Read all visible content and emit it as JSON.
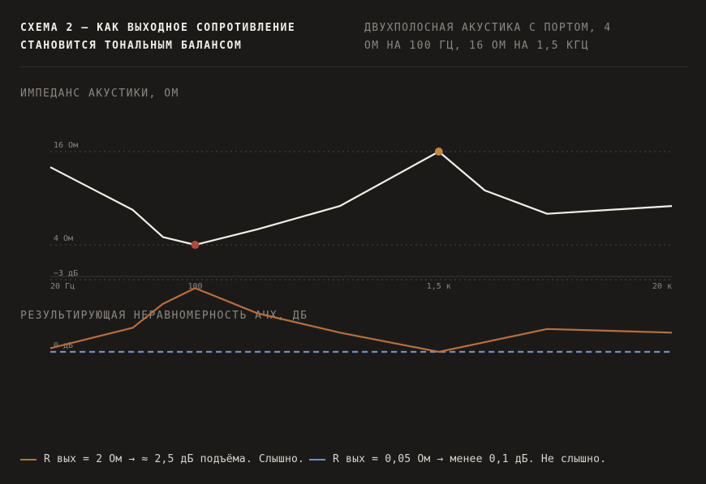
{
  "header": {
    "title_line1": "СХЕМА 2 — КАК ВЫХОДНОЕ СОПРОТИВЛЕНИЕ",
    "title_line2": "СТАНОВИТСЯ ТОНАЛЬНЫМ БАЛАНСОМ",
    "subtitle_line1": "ДВУХПОЛОСНАЯ АКУСТИКА С ПОРТОМ, 4",
    "subtitle_line2": "ОМ НА 100 ГЦ, 16 ОМ НА 1,5 КГЦ"
  },
  "colors": {
    "background": "#1c1a19",
    "impedance_line": "#f3efe8",
    "orange": "#b86e3f",
    "blue": "#6f8fbf",
    "min_marker": "#b04a3c",
    "max_marker": "#c0874a"
  },
  "chart_data": [
    {
      "type": "line",
      "title": "ИМПЕДАНС АКУСТИКИ, ОМ",
      "xscale": "log",
      "x_ticks": [
        {
          "value": 20,
          "label": "20 Гц"
        },
        {
          "value": 100,
          "label": "100"
        },
        {
          "value": 1500,
          "label": "1,5 к"
        },
        {
          "value": 20000,
          "label": "20 к"
        }
      ],
      "y_ticks": [
        {
          "value": 16,
          "label": "16 Ом"
        },
        {
          "value": 4,
          "label": "4 Ом"
        }
      ],
      "grid": "dashed at y ticks",
      "series": [
        {
          "x": [
            20,
            50,
            70,
            100,
            200,
            500,
            1500,
            2500,
            5000,
            20000
          ],
          "y": [
            14,
            8.5,
            5,
            4,
            6,
            9,
            16,
            11,
            8,
            9
          ]
        }
      ],
      "markers": [
        {
          "x": 100,
          "y": 4,
          "color": "#b04a3c"
        },
        {
          "x": 1500,
          "y": 16,
          "color": "#c0874a"
        }
      ]
    },
    {
      "type": "line",
      "title": "РЕЗУЛЬТИРУЮЩАЯ НЕРАВНОМЕРНОСТЬ АЧХ, ДБ",
      "xscale": "log",
      "y_ticks": [
        {
          "value": 0,
          "label": "0 дБ"
        },
        {
          "value": -3,
          "label": "−3 дБ"
        }
      ],
      "grid": "dashed at y ticks",
      "series": [
        {
          "name": "R вых = 2 Ом → ≈ 2,5 дБ подъёма. Слышно.",
          "color": "#b86e3f",
          "x": [
            20,
            50,
            70,
            100,
            200,
            500,
            1500,
            2500,
            5000,
            20000
          ],
          "y": [
            -0.15,
            -1.0,
            -2.0,
            -2.65,
            -1.6,
            -0.8,
            0,
            -0.4,
            -0.95,
            -0.8
          ]
        },
        {
          "name": "R вых = 0,05 Ом → менее 0,1 дБ. Не слышно.",
          "color": "#6f8fbf",
          "dashed": true,
          "x": [
            20,
            20000
          ],
          "y": [
            0,
            0
          ]
        }
      ]
    }
  ]
}
